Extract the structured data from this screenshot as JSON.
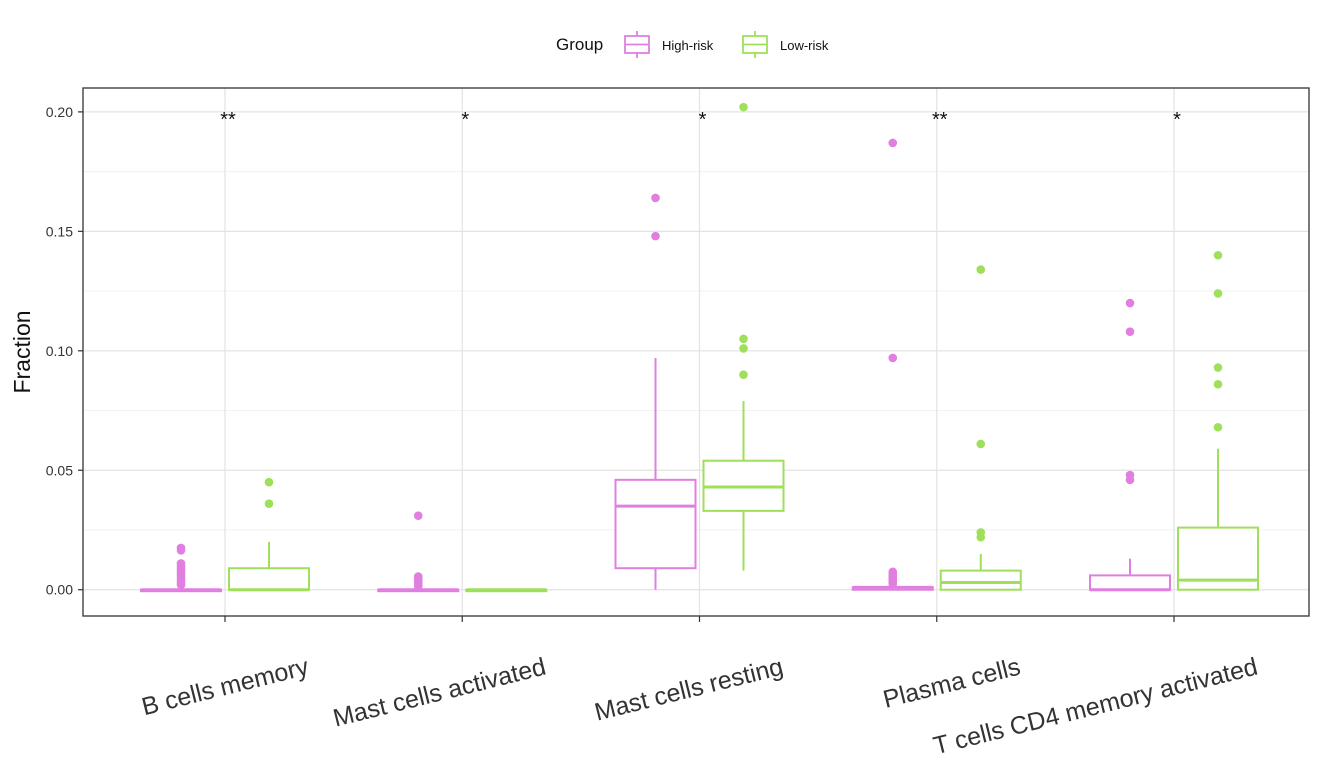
{
  "chart_data": {
    "type": "boxplot",
    "title": "",
    "xlabel": "",
    "ylabel": "Fraction",
    "ylim": [
      -0.011,
      0.21
    ],
    "yticks": [
      0.0,
      0.05,
      0.1,
      0.15,
      0.2
    ],
    "ytick_labels": [
      "0.00",
      "0.05",
      "0.10",
      "0.15",
      "0.20"
    ],
    "grid": true,
    "legend": {
      "title": "Group",
      "position": "top",
      "entries": [
        "High-risk",
        "Low-risk"
      ]
    },
    "colors": {
      "High-risk": "#e07fe0",
      "Low-risk": "#9fe05a"
    },
    "categories": [
      "B cells memory",
      "Mast cells activated",
      "Mast cells resting",
      "Plasma cells",
      "T cells CD4 memory activated"
    ],
    "significance": [
      "**",
      "*",
      "*",
      "**",
      "*"
    ],
    "series": [
      {
        "name": "High-risk",
        "boxes": [
          {
            "whisker_low": 0.0,
            "q1": 0.0,
            "median": 0.0,
            "q3": 0.0,
            "whisker_high": 0.0,
            "outliers": [
              0.0175,
              0.0165,
              0.011,
              0.01,
              0.009,
              0.008,
              0.007,
              0.006,
              0.005,
              0.004,
              0.003,
              0.002
            ]
          },
          {
            "whisker_low": 0.0,
            "q1": 0.0,
            "median": 0.0,
            "q3": 0.0,
            "whisker_high": 0.0,
            "outliers": [
              0.031,
              0.0055,
              0.0045,
              0.0035,
              0.0025,
              0.0015
            ]
          },
          {
            "whisker_low": 0.0,
            "q1": 0.009,
            "median": 0.035,
            "q3": 0.046,
            "whisker_high": 0.097,
            "outliers": [
              0.164,
              0.148
            ]
          },
          {
            "whisker_low": 0.0,
            "q1": 0.0,
            "median": 0.001,
            "q3": 0.001,
            "whisker_high": 0.001,
            "outliers": [
              0.187,
              0.097,
              0.0075,
              0.0065,
              0.0055,
              0.0045,
              0.0035,
              0.0025
            ]
          },
          {
            "whisker_low": 0.0,
            "q1": 0.0,
            "median": 0.0,
            "q3": 0.006,
            "whisker_high": 0.013,
            "outliers": [
              0.12,
              0.108,
              0.048,
              0.046
            ]
          }
        ]
      },
      {
        "name": "Low-risk",
        "boxes": [
          {
            "whisker_low": 0.0,
            "q1": 0.0,
            "median": 0.0,
            "q3": 0.009,
            "whisker_high": 0.02,
            "outliers": [
              0.045,
              0.036
            ]
          },
          {
            "whisker_low": 0.0,
            "q1": 0.0,
            "median": 0.0,
            "q3": 0.0,
            "whisker_high": 0.0,
            "outliers": []
          },
          {
            "whisker_low": 0.008,
            "q1": 0.033,
            "median": 0.043,
            "q3": 0.054,
            "whisker_high": 0.079,
            "outliers": [
              0.202,
              0.105,
              0.101,
              0.09
            ]
          },
          {
            "whisker_low": 0.0,
            "q1": 0.0,
            "median": 0.003,
            "q3": 0.008,
            "whisker_high": 0.015,
            "outliers": [
              0.134,
              0.061,
              0.024,
              0.022
            ]
          },
          {
            "whisker_low": 0.0,
            "q1": 0.0,
            "median": 0.004,
            "q3": 0.026,
            "whisker_high": 0.059,
            "outliers": [
              0.14,
              0.124,
              0.093,
              0.086,
              0.068
            ]
          }
        ]
      }
    ]
  }
}
